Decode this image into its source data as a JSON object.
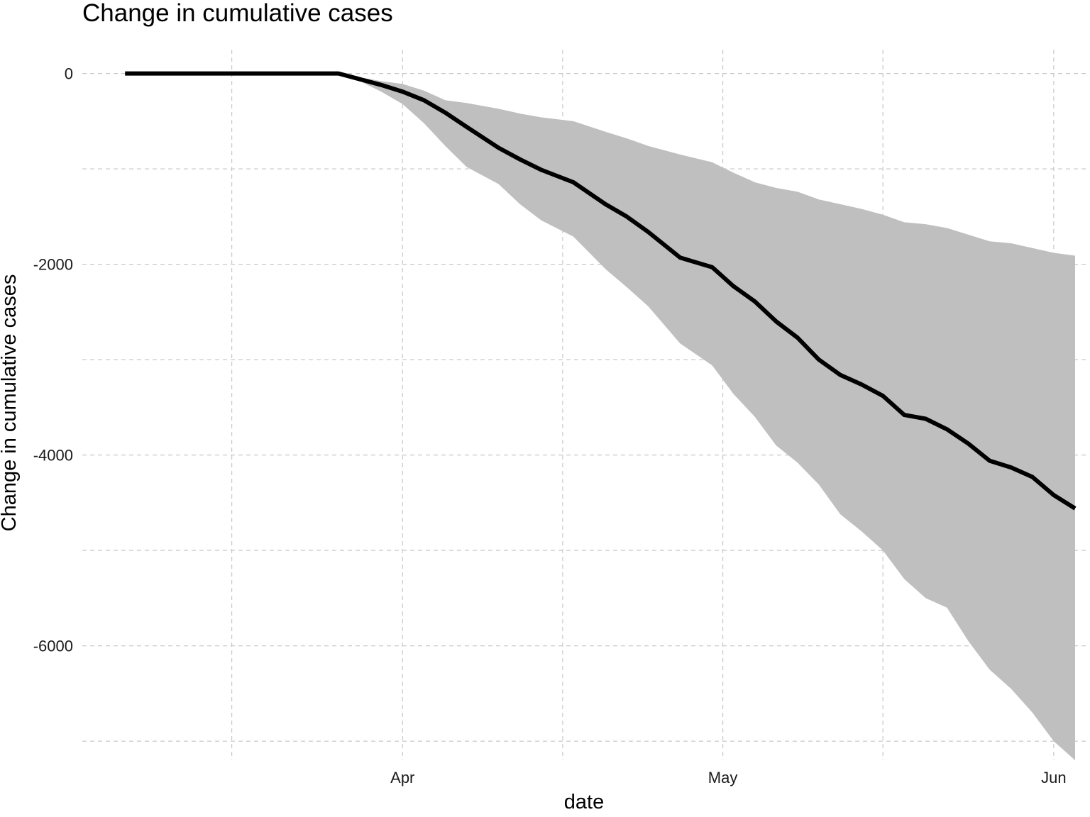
{
  "chart_data": {
    "type": "line",
    "title": "Change in cumulative cases",
    "xlabel": "date",
    "ylabel": "Change in cumulative cases",
    "x_range": [
      "2020-03-02",
      "2020-06-04"
    ],
    "ylim": [
      -7200,
      250
    ],
    "x_ticks": [
      {
        "date": "2020-04-01",
        "label": "Apr"
      },
      {
        "date": "2020-05-01",
        "label": "May"
      },
      {
        "date": "2020-06-01",
        "label": "Jun"
      }
    ],
    "x_minor_ticks": [
      "2020-03-16",
      "2020-04-16",
      "2020-05-16"
    ],
    "y_ticks": [
      {
        "value": 0,
        "label": "0"
      },
      {
        "value": -2000,
        "label": "-2000"
      },
      {
        "value": -4000,
        "label": "-4000"
      },
      {
        "value": -6000,
        "label": "-6000"
      }
    ],
    "y_minor_ticks": [
      -1000,
      -3000,
      -5000,
      -7000
    ],
    "grid": true,
    "legend": "none",
    "colors": {
      "line": "#000000",
      "ribbon": "#bfbfbf",
      "grid": "#c8c8c8"
    },
    "series": [
      {
        "x": [
          "2020-03-06",
          "2020-03-26",
          "2020-03-28",
          "2020-03-30",
          "2020-04-01",
          "2020-04-03",
          "2020-04-05",
          "2020-04-07",
          "2020-04-10",
          "2020-04-12",
          "2020-04-14",
          "2020-04-17",
          "2020-04-20",
          "2020-04-22",
          "2020-04-24",
          "2020-04-27",
          "2020-04-30",
          "2020-05-02",
          "2020-05-04",
          "2020-05-06",
          "2020-05-08",
          "2020-05-10",
          "2020-05-12",
          "2020-05-14",
          "2020-05-16",
          "2020-05-18",
          "2020-05-20",
          "2020-05-22",
          "2020-05-24",
          "2020-05-26",
          "2020-05-28",
          "2020-05-30",
          "2020-06-01",
          "2020-06-03"
        ],
        "values": [
          0,
          0,
          -60,
          -120,
          -190,
          -280,
          -410,
          -560,
          -780,
          -900,
          -1010,
          -1140,
          -1370,
          -1500,
          -1660,
          -1930,
          -2030,
          -2230,
          -2390,
          -2600,
          -2770,
          -3000,
          -3160,
          -3260,
          -3380,
          -3580,
          -3620,
          -3730,
          -3880,
          -4060,
          -4130,
          -4230,
          -4420,
          -4560
        ],
        "lower": [
          0,
          0,
          -80,
          -190,
          -320,
          -520,
          -760,
          -980,
          -1160,
          -1370,
          -1540,
          -1710,
          -2050,
          -2240,
          -2440,
          -2830,
          -3060,
          -3360,
          -3600,
          -3900,
          -4080,
          -4310,
          -4620,
          -4800,
          -5000,
          -5300,
          -5500,
          -5600,
          -5950,
          -6250,
          -6450,
          -6700,
          -7000,
          -7200
        ],
        "upper": [
          0,
          0,
          -40,
          -80,
          -110,
          -180,
          -280,
          -310,
          -370,
          -420,
          -460,
          -500,
          -610,
          -680,
          -760,
          -850,
          -930,
          -1040,
          -1140,
          -1200,
          -1240,
          -1320,
          -1370,
          -1420,
          -1480,
          -1560,
          -1580,
          -1620,
          -1690,
          -1760,
          -1780,
          -1830,
          -1880,
          -1910
        ]
      }
    ]
  }
}
